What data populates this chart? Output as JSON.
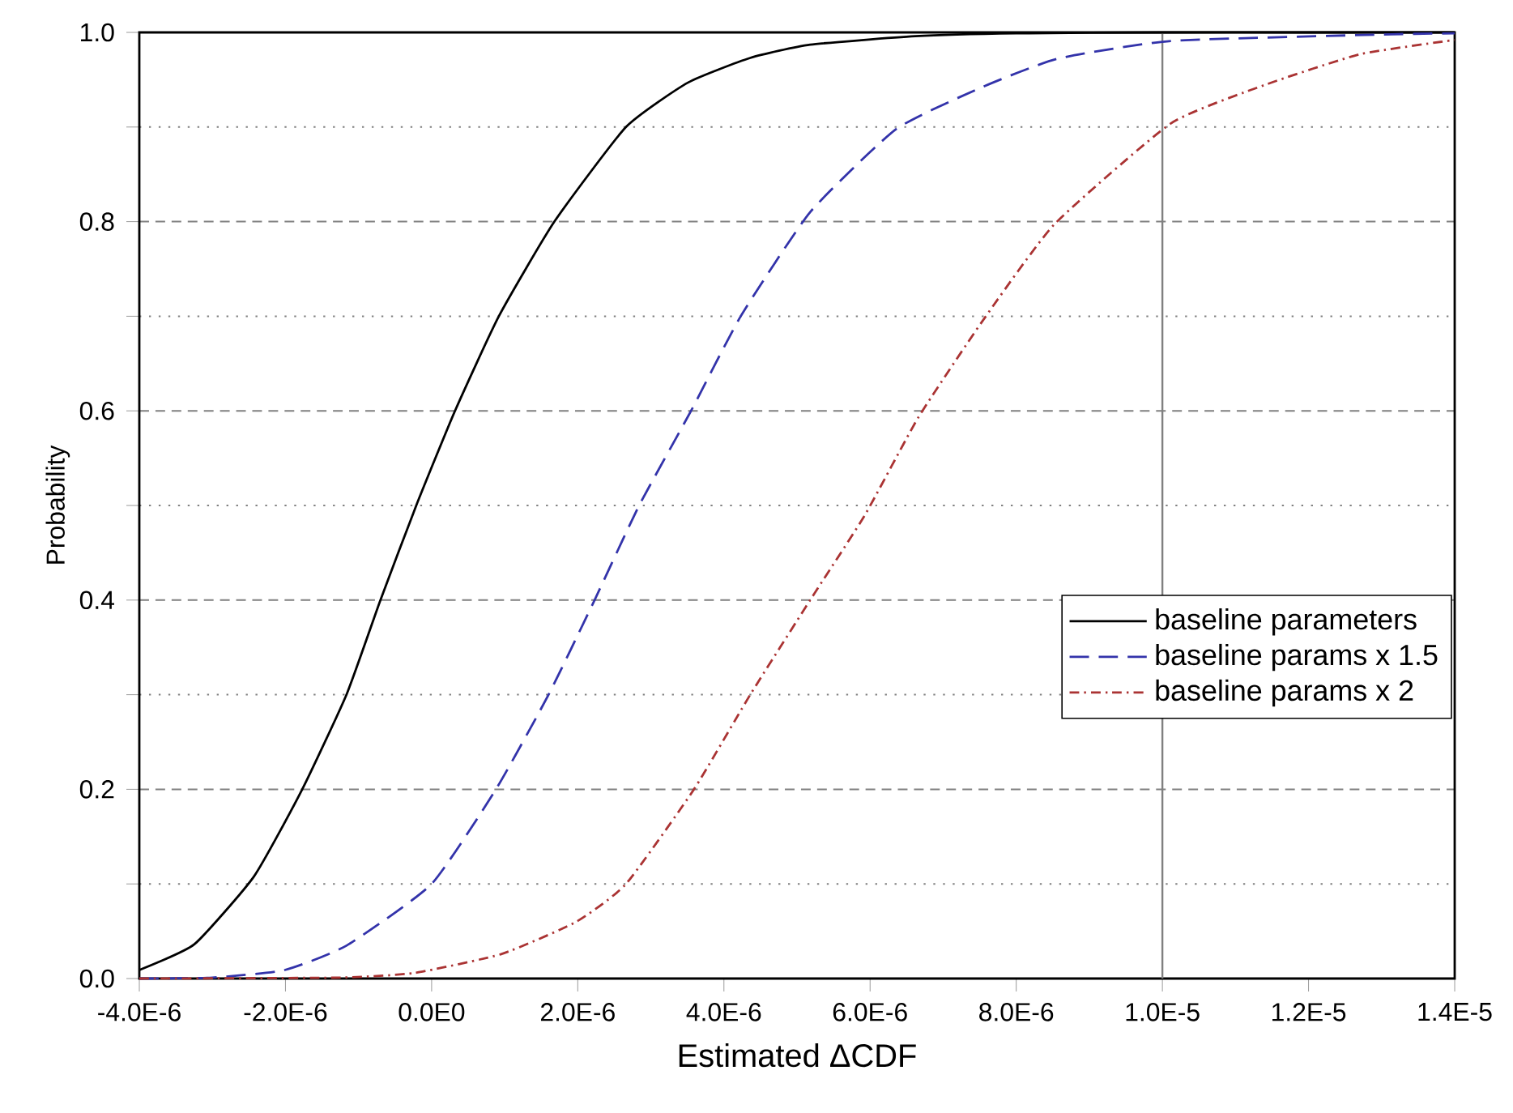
{
  "chart_data": {
    "type": "line",
    "xlabel": "Estimated ΔCDF",
    "ylabel": "Probability",
    "xlim": [
      -4e-06,
      1.4e-05
    ],
    "ylim": [
      0,
      1
    ],
    "xticks": [
      {
        "value": -4e-06,
        "label": "-4.0E-6"
      },
      {
        "value": -2e-06,
        "label": "-2.0E-6"
      },
      {
        "value": 0,
        "label": "0.0E0"
      },
      {
        "value": 2e-06,
        "label": "2.0E-6"
      },
      {
        "value": 4e-06,
        "label": "4.0E-6"
      },
      {
        "value": 6e-06,
        "label": "6.0E-6"
      },
      {
        "value": 8e-06,
        "label": "8.0E-6"
      },
      {
        "value": 1e-05,
        "label": "1.0E-5"
      },
      {
        "value": 1.2e-05,
        "label": "1.2E-5"
      },
      {
        "value": 1.4e-05,
        "label": "1.4E-5"
      }
    ],
    "yticks": [
      {
        "value": 0,
        "label": "0.0"
      },
      {
        "value": 0.1,
        "label": null
      },
      {
        "value": 0.2,
        "label": "0.2"
      },
      {
        "value": 0.3,
        "label": null
      },
      {
        "value": 0.4,
        "label": "0.4"
      },
      {
        "value": 0.5,
        "label": null
      },
      {
        "value": 0.6,
        "label": "0.6"
      },
      {
        "value": 0.7,
        "label": null
      },
      {
        "value": 0.8,
        "label": "0.8"
      },
      {
        "value": 0.9,
        "label": null
      },
      {
        "value": 1,
        "label": "1.0"
      }
    ],
    "grid": "y",
    "legend": "right",
    "marker": "none",
    "ref_lines": [
      {
        "axis": "x",
        "value": 1e-05,
        "color": "#808080"
      }
    ],
    "series": [
      {
        "name": "baseline parameters",
        "color": "#000000",
        "line_style": "solid",
        "x": [
          -4e-06,
          -3.25e-06,
          -2.43e-06,
          -1.77e-06,
          -1.16e-06,
          -7e-07,
          -2.1e-07,
          3.2e-07,
          9.2e-07,
          1.68e-06,
          2.66e-06,
          3.51e-06,
          4.36e-06,
          5.18e-06,
          6.62e-06,
          8e-06,
          1e-05,
          1.2e-05,
          1.4e-05
        ],
        "values": [
          0.009,
          0.036,
          0.108,
          0.2,
          0.301,
          0.4,
          0.5,
          0.6,
          0.7,
          0.8,
          0.9,
          0.947,
          0.973,
          0.987,
          0.996,
          0.999,
          1,
          1,
          1
        ]
      },
      {
        "name": "baseline params x 1.5",
        "color": "#3333aa",
        "line_style": "dashed",
        "x": [
          -4e-06,
          -3e-06,
          -2.01e-06,
          -1.16e-06,
          0,
          8.8e-07,
          1.6e-06,
          2.23e-06,
          2.84e-06,
          3.55e-06,
          4.23e-06,
          5.18e-06,
          6.36e-06,
          7.53e-06,
          8.56e-06,
          1.012e-05,
          1.314e-05,
          1.4e-05
        ],
        "values": [
          0,
          0.001,
          0.009,
          0.035,
          0.1,
          0.2,
          0.3,
          0.4,
          0.5,
          0.6,
          0.7,
          0.81,
          0.898,
          0.942,
          0.972,
          0.991,
          0.998,
          0.999
        ]
      },
      {
        "name": "baseline params x 2",
        "color": "#aa3333",
        "line_style": "dashdot",
        "x": [
          -4e-06,
          -1.25e-06,
          -2.3e-07,
          9.6e-07,
          1.98e-06,
          2.66e-06,
          3.59e-06,
          4.36e-06,
          5.18e-06,
          5.93e-06,
          6.66e-06,
          7.53e-06,
          8.52e-06,
          1.012e-05,
          1.142e-05,
          1.271e-05,
          1.4e-05
        ],
        "values": [
          0,
          0.001,
          0.006,
          0.026,
          0.06,
          0.1,
          0.2,
          0.3,
          0.4,
          0.49,
          0.593,
          0.694,
          0.797,
          0.904,
          0.945,
          0.977,
          0.992
        ]
      }
    ]
  }
}
